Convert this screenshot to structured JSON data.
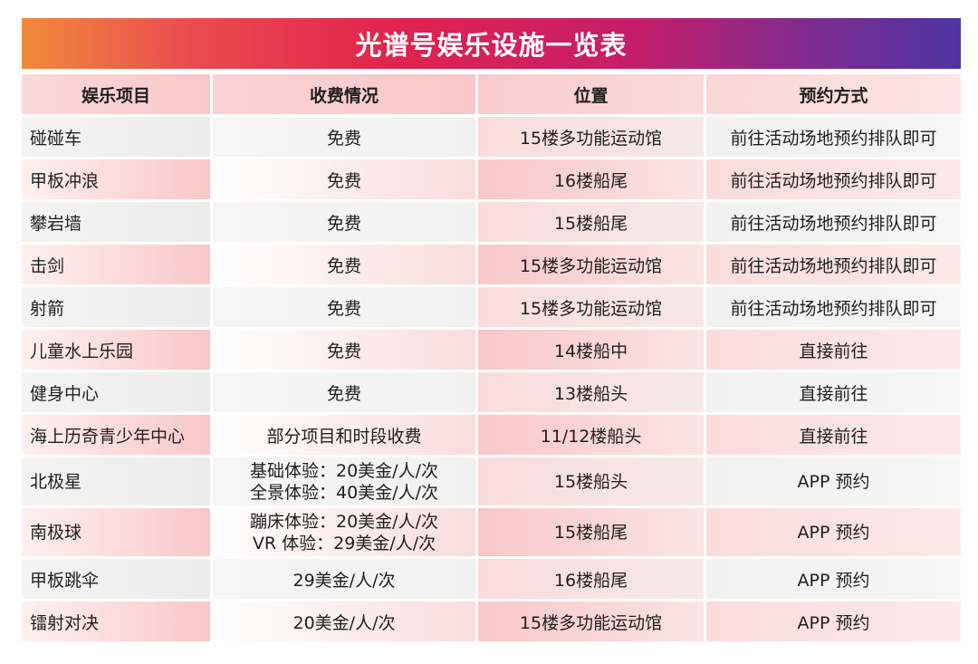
{
  "title": "光谱号娱乐设施一览表",
  "colors": {
    "title_gradient": [
      "#f08a3c",
      "#e0234e",
      "#c61d6a",
      "#4f35a2"
    ],
    "row_pink": "#f9c7c7",
    "row_grey": "#ececec"
  },
  "table": {
    "headers": [
      "娱乐项目",
      "收费情况",
      "位置",
      "预约方式"
    ],
    "rows": [
      {
        "name": "碰碰车",
        "fee": [
          "免费"
        ],
        "location": "15楼多功能运动馆",
        "booking": "前往活动场地预约排队即可"
      },
      {
        "name": "甲板冲浪",
        "fee": [
          "免费"
        ],
        "location": "16楼船尾",
        "booking": "前往活动场地预约排队即可"
      },
      {
        "name": "攀岩墙",
        "fee": [
          "免费"
        ],
        "location": "15楼船尾",
        "booking": "前往活动场地预约排队即可"
      },
      {
        "name": "击剑",
        "fee": [
          "免费"
        ],
        "location": "15楼多功能运动馆",
        "booking": "前往活动场地预约排队即可"
      },
      {
        "name": "射箭",
        "fee": [
          "免费"
        ],
        "location": "15楼多功能运动馆",
        "booking": "前往活动场地预约排队即可"
      },
      {
        "name": "儿童水上乐园",
        "fee": [
          "免费"
        ],
        "location": "14楼船中",
        "booking": "直接前往"
      },
      {
        "name": "健身中心",
        "fee": [
          "免费"
        ],
        "location": "13楼船头",
        "booking": "直接前往"
      },
      {
        "name": "海上历奇青少年中心",
        "fee": [
          "部分项目和时段收费"
        ],
        "location": "11/12楼船头",
        "booking": "直接前往"
      },
      {
        "name": "北极星",
        "fee": [
          "基础体验：20美金/人/次",
          "全景体验：40美金/人/次"
        ],
        "location": "15楼船头",
        "booking": "APP 预约"
      },
      {
        "name": "南极球",
        "fee": [
          "蹦床体验：20美金/人/次",
          "VR 体验：29美金/人/次"
        ],
        "location": "15楼船尾",
        "booking": "APP 预约"
      },
      {
        "name": "甲板跳伞",
        "fee": [
          "29美金/人/次"
        ],
        "location": "16楼船尾",
        "booking": "APP 预约"
      },
      {
        "name": "镭射对决",
        "fee": [
          "20美金/人/次"
        ],
        "location": "15楼多功能运动馆",
        "booking": "APP 预约"
      }
    ]
  }
}
